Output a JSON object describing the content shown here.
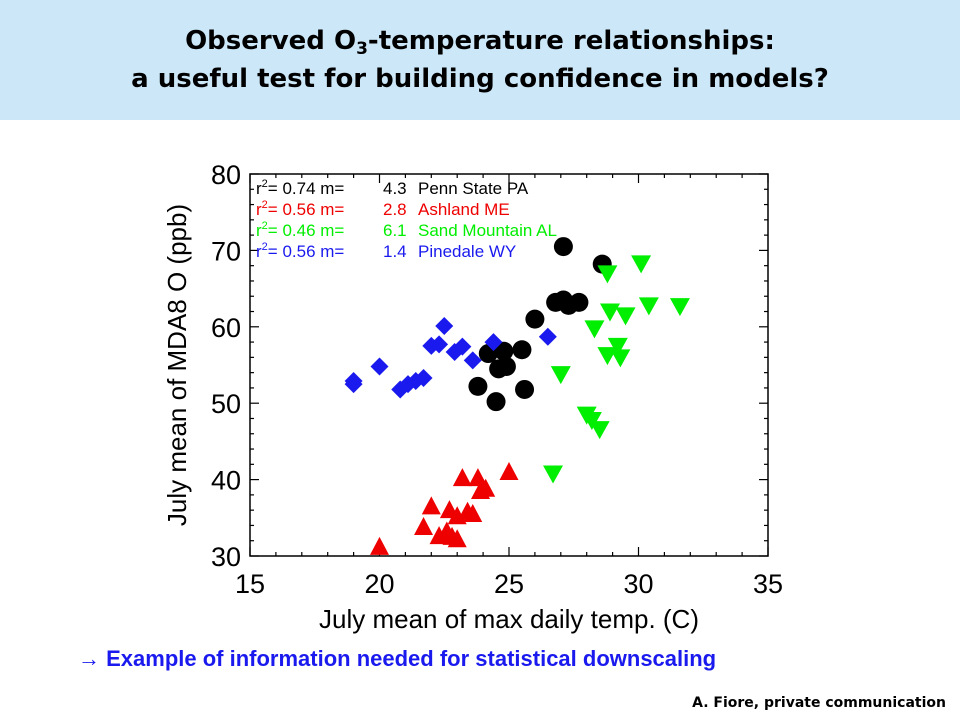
{
  "slide": {
    "title_part1": "Observed O",
    "title_sub": "3",
    "title_part2": "-temperature relationships:",
    "title_line2": "a useful test for building confidence in models?",
    "caption_arrow": "→",
    "caption": "Example of information needed for statistical downscaling",
    "credit": "A. Fiore, private communication"
  },
  "chart_data": {
    "type": "scatter",
    "xlabel": "July mean of max daily temp. (C)",
    "ylabel": "July mean of MDA8 O (ppb)",
    "xlim": [
      15,
      35
    ],
    "ylim": [
      30,
      80
    ],
    "xticks": [
      15,
      20,
      25,
      30,
      35
    ],
    "yticks": [
      30,
      40,
      50,
      60,
      70,
      80
    ],
    "grid": false,
    "legend_position": "top-left",
    "series": [
      {
        "name": "Penn State PA",
        "r2_label": "r",
        "r2_sup": "2",
        "r2_eq": "= 0.74 m=",
        "slope": "4.3",
        "color": "#000000",
        "marker": "circle",
        "points": [
          [
            24.2,
            56.5
          ],
          [
            24.8,
            56.8
          ],
          [
            24.6,
            54.5
          ],
          [
            24.9,
            54.8
          ],
          [
            25.5,
            57.0
          ],
          [
            23.8,
            52.2
          ],
          [
            24.5,
            50.2
          ],
          [
            25.6,
            51.8
          ],
          [
            26.0,
            61.0
          ],
          [
            26.8,
            63.2
          ],
          [
            27.1,
            63.5
          ],
          [
            27.3,
            62.8
          ],
          [
            27.7,
            63.2
          ],
          [
            27.1,
            70.5
          ],
          [
            28.6,
            68.2
          ]
        ]
      },
      {
        "name": "Ashland ME",
        "r2_label": "r",
        "r2_sup": "2",
        "r2_eq": "= 0.56 m=",
        "slope": "2.8",
        "color": "#ee0000",
        "marker": "triangle-up",
        "points": [
          [
            20.0,
            31.2
          ],
          [
            21.7,
            33.8
          ],
          [
            22.0,
            36.5
          ],
          [
            22.3,
            32.6
          ],
          [
            22.6,
            33.2
          ],
          [
            22.8,
            32.5
          ],
          [
            23.0,
            32.2
          ],
          [
            22.7,
            36.0
          ],
          [
            23.0,
            35.2
          ],
          [
            23.4,
            35.8
          ],
          [
            23.6,
            35.5
          ],
          [
            23.2,
            40.2
          ],
          [
            23.8,
            40.2
          ],
          [
            23.9,
            38.5
          ],
          [
            24.1,
            38.8
          ],
          [
            25.0,
            41.0
          ]
        ]
      },
      {
        "name": "Sand Mountain AL",
        "r2_label": "r",
        "r2_sup": "2",
        "r2_eq": "= 0.46 m=",
        "slope": "6.1",
        "color": "#00ee00",
        "marker": "triangle-down",
        "points": [
          [
            28.8,
            67.0
          ],
          [
            30.1,
            68.3
          ],
          [
            28.9,
            62.0
          ],
          [
            29.5,
            61.5
          ],
          [
            30.4,
            62.8
          ],
          [
            31.6,
            62.7
          ],
          [
            28.3,
            59.8
          ],
          [
            29.2,
            57.5
          ],
          [
            28.8,
            56.3
          ],
          [
            29.3,
            56.0
          ],
          [
            27.0,
            53.8
          ],
          [
            28.0,
            48.5
          ],
          [
            28.2,
            47.8
          ],
          [
            28.5,
            46.6
          ],
          [
            26.7,
            40.8
          ]
        ]
      },
      {
        "name": "Pinedale WY",
        "r2_label": "r",
        "r2_sup": "2",
        "r2_eq": "= 0.56 m=",
        "slope": "1.4",
        "color": "#1a1aee",
        "marker": "diamond",
        "points": [
          [
            19.0,
            52.5
          ],
          [
            19.0,
            52.9
          ],
          [
            20.0,
            54.8
          ],
          [
            20.8,
            51.8
          ],
          [
            21.1,
            52.5
          ],
          [
            21.4,
            52.9
          ],
          [
            21.7,
            53.3
          ],
          [
            22.0,
            57.5
          ],
          [
            22.3,
            57.7
          ],
          [
            22.5,
            60.1
          ],
          [
            22.9,
            56.7
          ],
          [
            23.2,
            57.4
          ],
          [
            23.6,
            55.6
          ],
          [
            24.4,
            58.0
          ],
          [
            26.5,
            58.7
          ]
        ]
      }
    ]
  }
}
